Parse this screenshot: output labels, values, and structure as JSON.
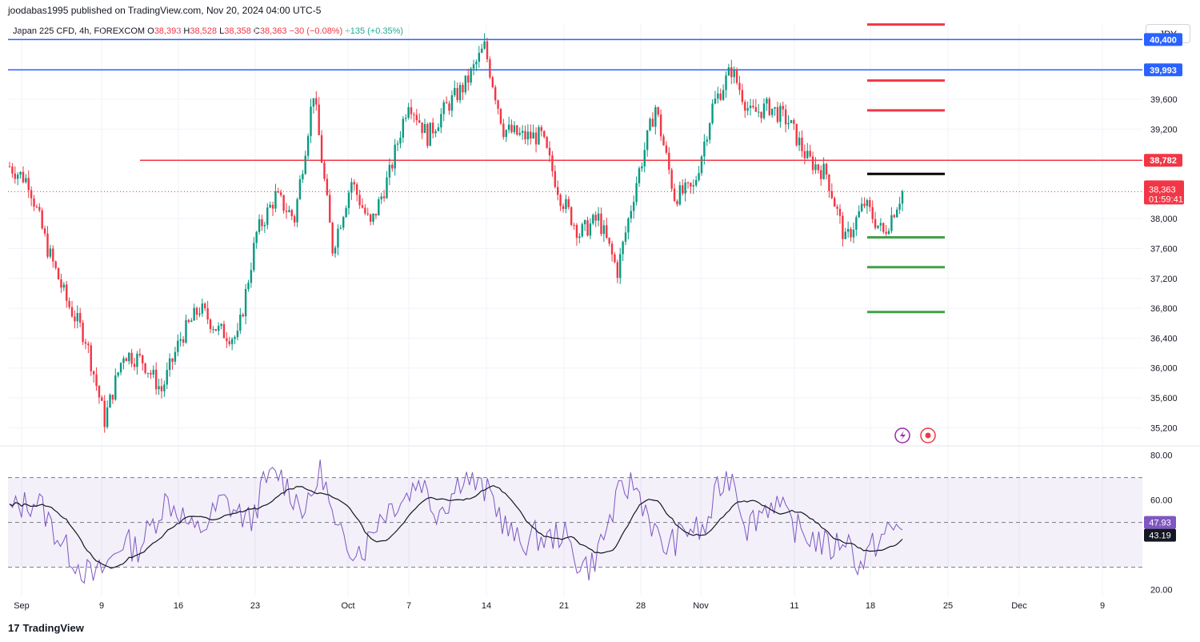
{
  "header": {
    "publisher": "joodabas1995 published on TradingView.com, Nov 20, 2024 04:00 UTC-5"
  },
  "legend": {
    "symbol": "Japan 225 CFD, 4h, FOREXCOM",
    "open_label": "O",
    "open": "38,393",
    "high_label": "H",
    "high": "38,528",
    "low_label": "L",
    "low": "38,358",
    "close_label": "C",
    "close": "38,363",
    "change": "−30 (−0.08%)",
    "change2": "+135 (+0.35%)"
  },
  "currency_button": "JPY",
  "logo_text": "TradingView",
  "colors": {
    "up": "#089981",
    "down": "#f23645",
    "blue_line": "#2962ff",
    "red_line": "#f23645",
    "rsi_line": "#7e57c2",
    "rsi_ma": "#131722",
    "rsi_band": "#7e57c2"
  },
  "chart_data": {
    "type": "candlestick",
    "price_axis": {
      "ticks": [
        "35,200",
        "35,600",
        "36,000",
        "36,400",
        "36,800",
        "37,200",
        "37,600",
        "38,000",
        "39,200",
        "39,600",
        "40,400"
      ],
      "tick_values": [
        35200,
        35600,
        36000,
        36400,
        36800,
        37200,
        37600,
        38000,
        39200,
        39600,
        40400
      ],
      "range": [
        35000,
        40500
      ]
    },
    "x_axis": {
      "labels": [
        "Sep",
        "9",
        "16",
        "23",
        "Oct",
        "7",
        "14",
        "21",
        "28",
        "Nov",
        "11",
        "18",
        "25",
        "Dec",
        "9"
      ]
    },
    "price_path": [
      {
        "date": "Sep 2",
        "close": 38700
      },
      {
        "date": "Sep 3",
        "close": 38500
      },
      {
        "date": "Sep 4",
        "close": 37600
      },
      {
        "date": "Sep 5",
        "close": 36900
      },
      {
        "date": "Sep 6",
        "close": 36400
      },
      {
        "date": "Sep 8",
        "close": 35300
      },
      {
        "date": "Sep 10",
        "close": 36200
      },
      {
        "date": "Sep 12",
        "close": 36100
      },
      {
        "date": "Sep 13",
        "close": 35700
      },
      {
        "date": "Sep 15",
        "close": 36400
      },
      {
        "date": "Sep 17",
        "close": 36800
      },
      {
        "date": "Sep 18",
        "close": 36500
      },
      {
        "date": "Sep 20",
        "close": 36400
      },
      {
        "date": "Sep 23",
        "close": 37800
      },
      {
        "date": "Sep 25",
        "close": 38300
      },
      {
        "date": "Sep 26",
        "close": 38000
      },
      {
        "date": "Sep 28",
        "close": 39700
      },
      {
        "date": "Sep 30",
        "close": 37600
      },
      {
        "date": "Oct 2",
        "close": 38500
      },
      {
        "date": "Oct 4",
        "close": 37900
      },
      {
        "date": "Oct 6",
        "close": 38600
      },
      {
        "date": "Oct 8",
        "close": 39600
      },
      {
        "date": "Oct 10",
        "close": 39100
      },
      {
        "date": "Oct 12",
        "close": 39500
      },
      {
        "date": "Oct 14",
        "close": 39800
      },
      {
        "date": "Oct 15",
        "close": 40300
      },
      {
        "date": "Oct 16",
        "close": 39200
      },
      {
        "date": "Oct 18",
        "close": 39100
      },
      {
        "date": "Oct 20",
        "close": 39100
      },
      {
        "date": "Oct 22",
        "close": 38300
      },
      {
        "date": "Oct 24",
        "close": 37800
      },
      {
        "date": "Oct 26",
        "close": 38000
      },
      {
        "date": "Oct 28",
        "close": 37300
      },
      {
        "date": "Oct 29",
        "close": 38500
      },
      {
        "date": "Oct 31",
        "close": 39500
      },
      {
        "date": "Nov 2",
        "close": 38300
      },
      {
        "date": "Nov 4",
        "close": 38400
      },
      {
        "date": "Nov 6",
        "close": 39500
      },
      {
        "date": "Nov 7",
        "close": 40000
      },
      {
        "date": "Nov 8",
        "close": 39400
      },
      {
        "date": "Nov 10",
        "close": 39500
      },
      {
        "date": "Nov 12",
        "close": 39300
      },
      {
        "date": "Nov 14",
        "close": 38800
      },
      {
        "date": "Nov 15",
        "close": 38600
      },
      {
        "date": "Nov 17",
        "close": 37700
      },
      {
        "date": "Nov 18",
        "close": 38200
      },
      {
        "date": "Nov 19",
        "close": 37800
      },
      {
        "date": "Nov 20",
        "close": 38363
      }
    ],
    "horizontal_lines": [
      {
        "name": "resistance-blue-top",
        "value": 40400,
        "color": "#2962ff"
      },
      {
        "name": "resistance-blue",
        "value": 39993,
        "color": "#2962ff",
        "label": "39,993"
      },
      {
        "name": "pivot-red",
        "value": 38782,
        "color": "#f23645",
        "label": "38,782"
      }
    ],
    "level_marks": [
      {
        "value": 40600,
        "color": "#f23645"
      },
      {
        "value": 39850,
        "color": "#f23645"
      },
      {
        "value": 39450,
        "color": "#f23645"
      },
      {
        "value": 38600,
        "color": "#000000"
      },
      {
        "value": 37750,
        "color": "#43a047"
      },
      {
        "value": 37350,
        "color": "#43a047"
      },
      {
        "value": 36750,
        "color": "#43a047"
      }
    ],
    "last_price": {
      "label": "38,363",
      "value": 38363,
      "countdown": "01:59:41"
    },
    "rsi": {
      "ticks": [
        "20.00",
        "60.00",
        "80.00"
      ],
      "tick_values": [
        20,
        60,
        80
      ],
      "range": [
        17,
        82
      ],
      "upper_band": 70,
      "mid": 50,
      "lower_band": 30,
      "rsi_value": "47.93",
      "ma_value": "43.19",
      "values": [
        55,
        58,
        60,
        48,
        38,
        30,
        25,
        32,
        42,
        38,
        48,
        60,
        55,
        45,
        50,
        60,
        55,
        50,
        68,
        72,
        62,
        55,
        75,
        45,
        40,
        38,
        52,
        58,
        62,
        70,
        55,
        60,
        72,
        66,
        62,
        48,
        40,
        44,
        42,
        46,
        33,
        30,
        45,
        62,
        68,
        55,
        38,
        42,
        48,
        45,
        65,
        72,
        48,
        55,
        60,
        50,
        45,
        42,
        38,
        44,
        30,
        40,
        46,
        48
      ]
    }
  }
}
